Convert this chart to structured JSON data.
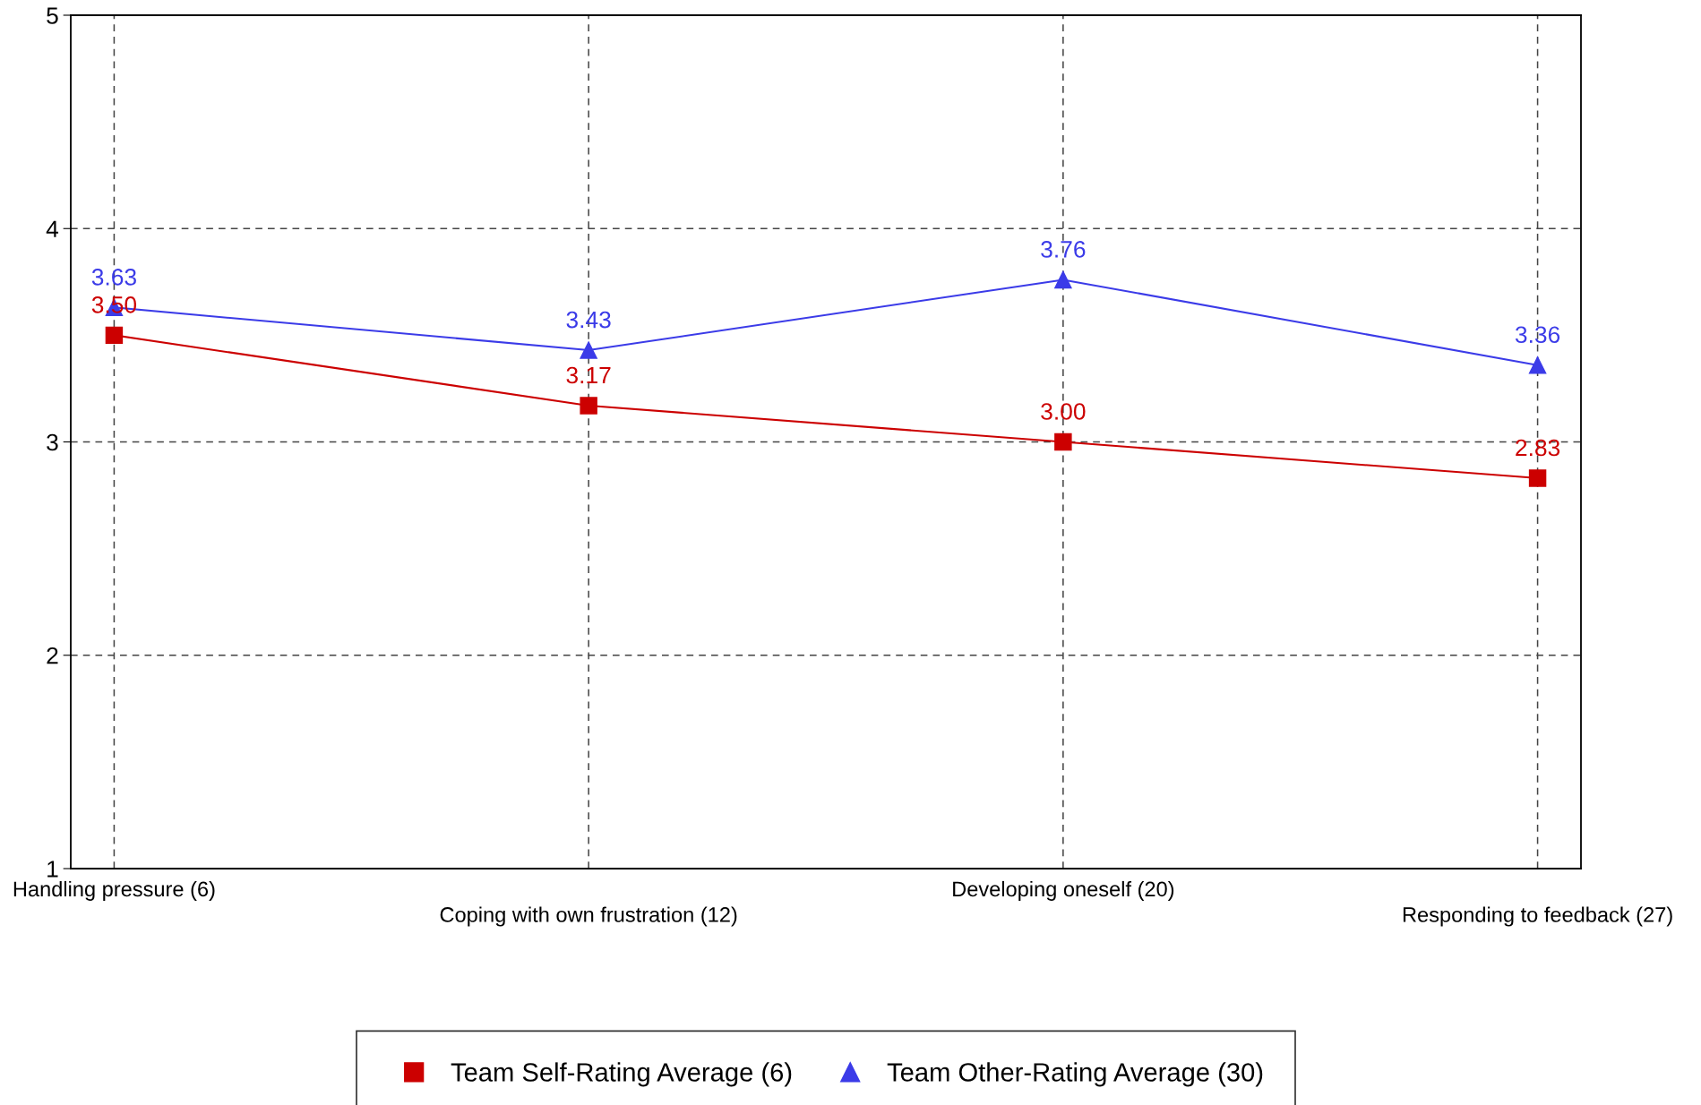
{
  "chart_data": {
    "type": "line",
    "categories": [
      "Handling pressure (6)",
      "Coping with own frustration (12)",
      "Developing oneself (20)",
      "Responding to feedback (27)"
    ],
    "series": [
      {
        "name": "Team Self-Rating Average (6)",
        "color": "#cc0000",
        "marker": "square",
        "values": [
          3.5,
          3.17,
          3.0,
          2.83
        ],
        "value_labels": [
          "3.50",
          "3.17",
          "3.00",
          "2.83"
        ]
      },
      {
        "name": "Team Other-Rating Average (30)",
        "color": "#3b3be8",
        "marker": "triangle",
        "values": [
          3.63,
          3.43,
          3.76,
          3.36
        ],
        "value_labels": [
          "3.63",
          "3.43",
          "3.76",
          "3.36"
        ]
      }
    ],
    "ylim": [
      1,
      5
    ],
    "yticks": [
      1,
      2,
      3,
      4,
      5
    ],
    "grid": true,
    "legend": "bottom",
    "line_style": "solid"
  }
}
